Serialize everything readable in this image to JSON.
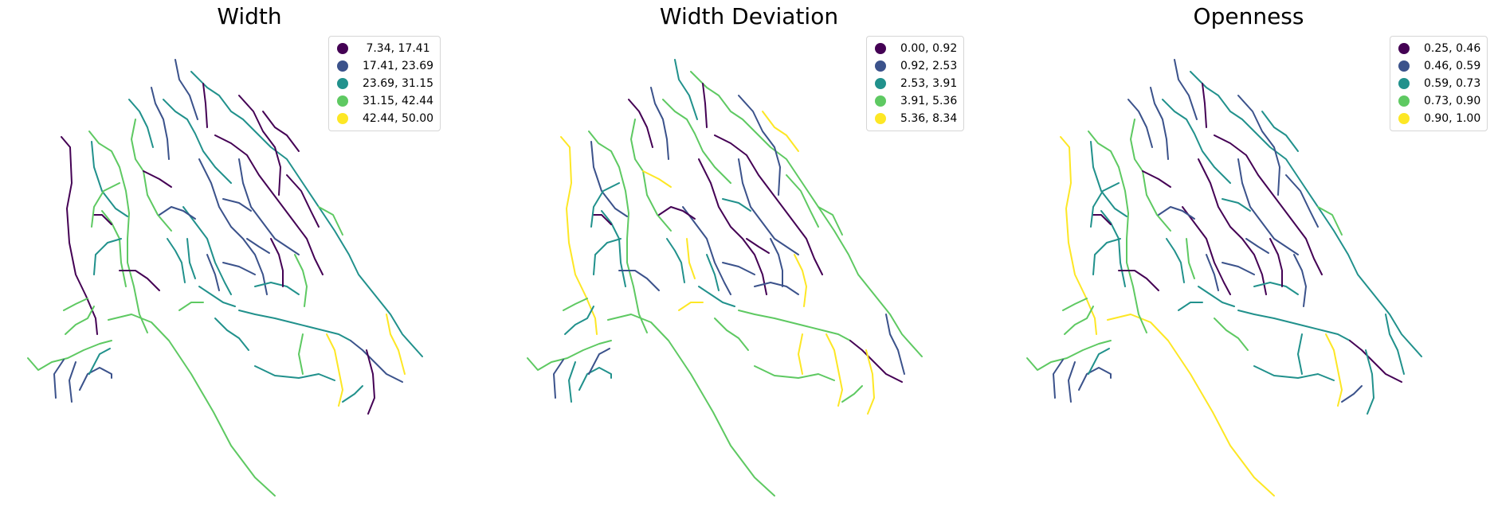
{
  "palette": [
    "#440154",
    "#3b528b",
    "#21918c",
    "#5ec962",
    "#fde725"
  ],
  "panels": [
    {
      "title": "Width",
      "legend": [
        " 7.34, 17.41",
        "17.41, 23.69",
        "23.69, 31.15",
        "31.15, 42.44",
        "42.44, 50.00"
      ]
    },
    {
      "title": "Width Deviation",
      "legend": [
        "0.00, 0.92",
        "0.92, 2.53",
        "2.53, 3.91",
        "3.91, 5.36",
        "5.36, 8.34"
      ]
    },
    {
      "title": "Openness",
      "legend": [
        "0.25, 0.46",
        "0.46, 0.59",
        "0.59, 0.73",
        "0.73, 0.90",
        "0.90, 1.00"
      ]
    }
  ]
}
